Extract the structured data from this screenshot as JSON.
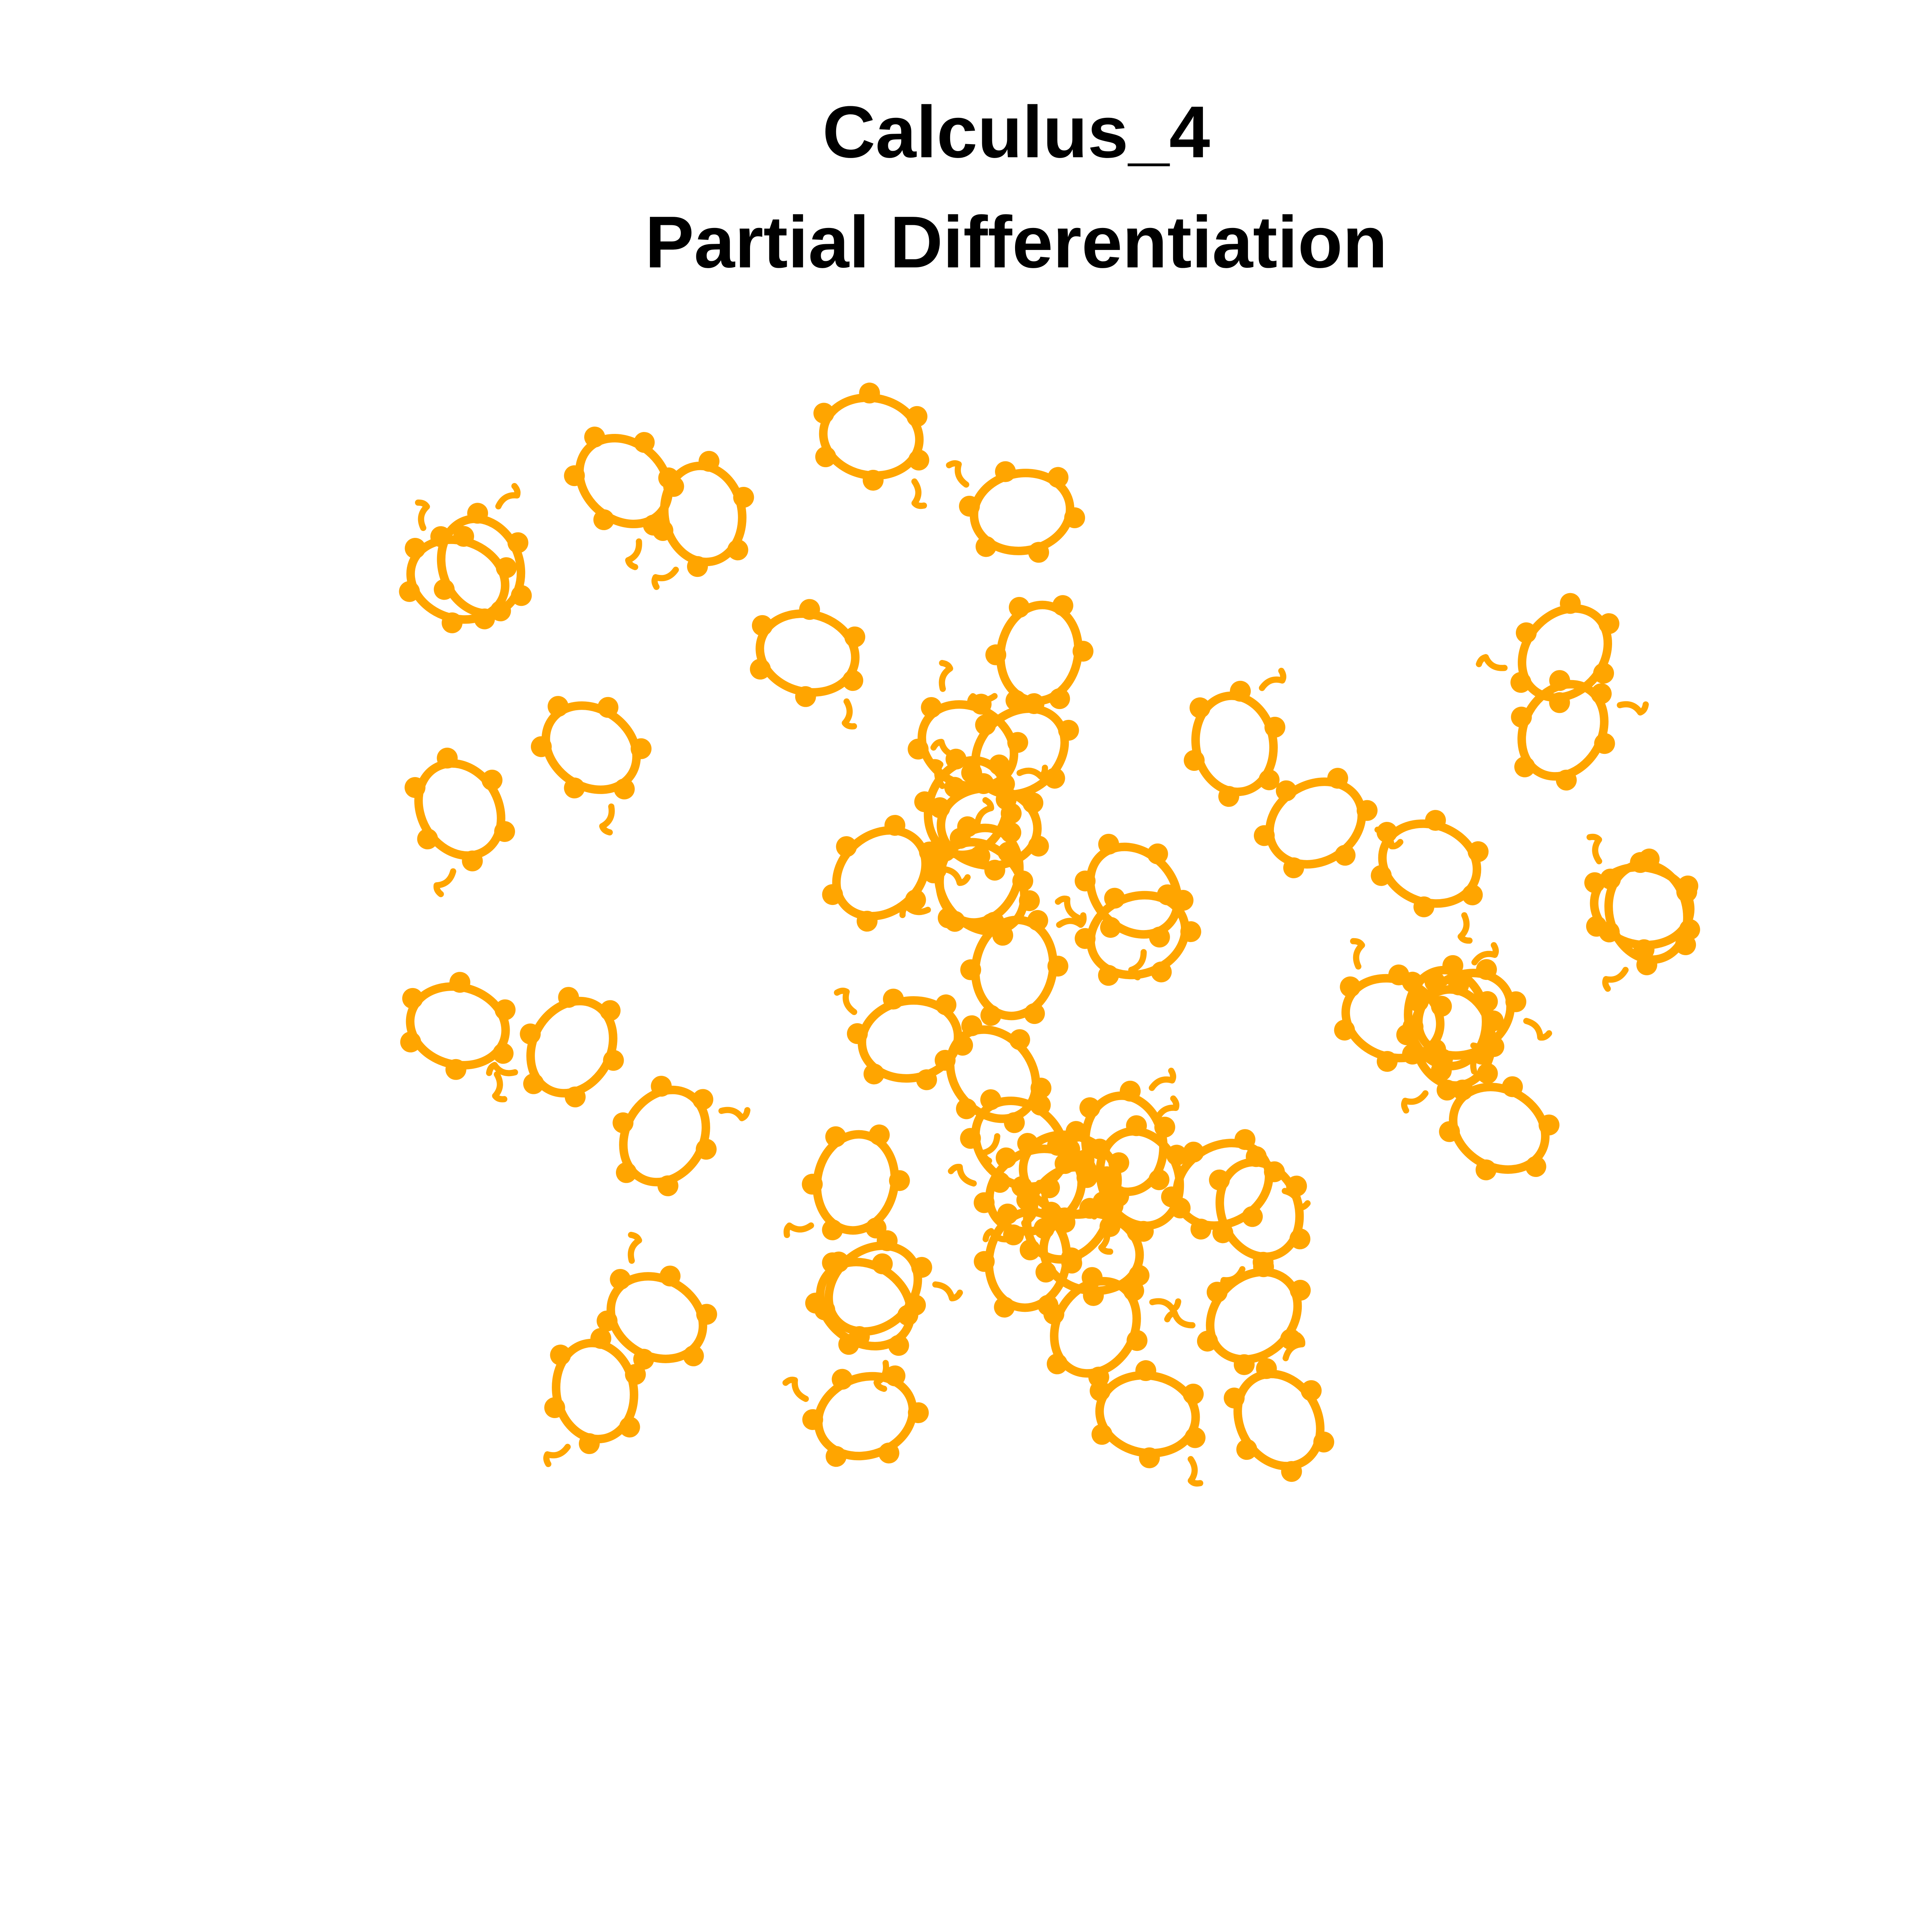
{
  "title": {
    "line1": "Calculus_4",
    "line2": "Partial Differentiation"
  },
  "shape_color": "#FFA500",
  "shape_icon": "orange-flower-ring-icon",
  "shape_count": 57
}
